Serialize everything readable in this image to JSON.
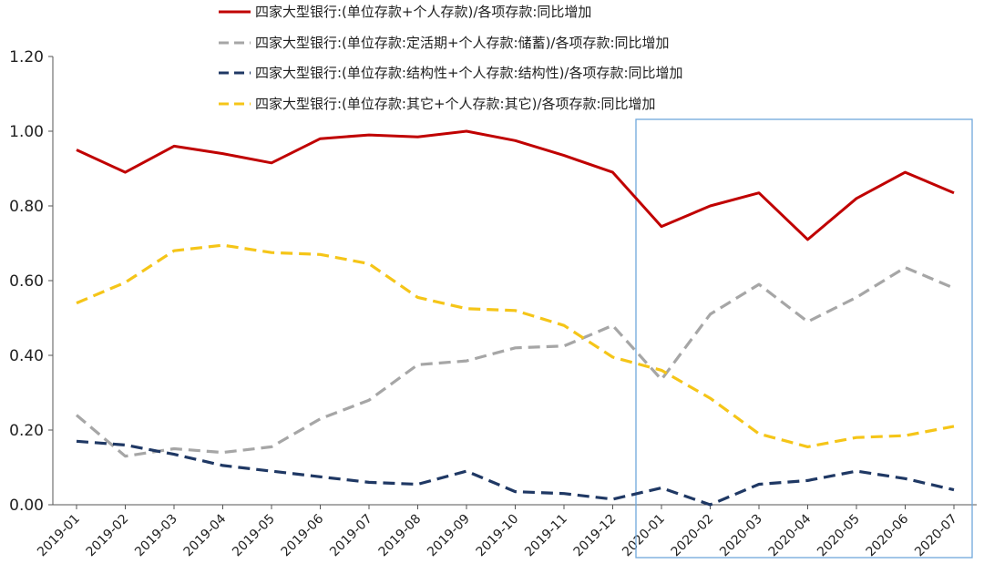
{
  "chart_data": {
    "type": "line",
    "x": [
      "2019-01",
      "2019-02",
      "2019-03",
      "2019-04",
      "2019-05",
      "2019-06",
      "2019-07",
      "2019-08",
      "2019-09",
      "2019-10",
      "2019-11",
      "2019-12",
      "2020-01",
      "2020-02",
      "2020-03",
      "2020-04",
      "2020-05",
      "2020-06",
      "2020-07"
    ],
    "ylim": [
      0,
      1.2
    ],
    "yticks": [
      "0.00",
      "0.20",
      "0.40",
      "0.60",
      "0.80",
      "1.00",
      "1.20"
    ],
    "grid": false,
    "legend_position": "top",
    "series": [
      {
        "name": "四家大型银行:(单位存款+个人存款)/各项存款:同比增加",
        "color": "#c00000",
        "style": "solid",
        "values": [
          0.95,
          0.89,
          0.96,
          0.94,
          0.915,
          0.98,
          0.99,
          0.985,
          1.0,
          0.975,
          0.935,
          0.89,
          0.745,
          0.8,
          0.835,
          0.71,
          0.82,
          0.89,
          0.835
        ]
      },
      {
        "name": "四家大型银行:(单位存款:定活期+个人存款:储蓄)/各项存款:同比增加",
        "color": "#a6a6a6",
        "style": "dashed",
        "values": [
          0.24,
          0.13,
          0.15,
          0.14,
          0.155,
          0.23,
          0.28,
          0.375,
          0.385,
          0.42,
          0.425,
          0.48,
          0.335,
          0.51,
          0.59,
          0.49,
          0.555,
          0.635,
          0.58
        ]
      },
      {
        "name": "四家大型银行:(单位存款:结构性+个人存款:结构性)/各项存款:同比增加",
        "color": "#1f3864",
        "style": "dashed",
        "values": [
          0.17,
          0.16,
          0.135,
          0.105,
          0.09,
          0.075,
          0.06,
          0.055,
          0.09,
          0.035,
          0.03,
          0.015,
          0.045,
          0.0,
          0.055,
          0.065,
          0.09,
          0.07,
          0.04
        ]
      },
      {
        "name": "四家大型银行:(单位存款:其它+个人存款:其它)/各项存款:同比增加",
        "color": "#f5c518",
        "style": "dashed",
        "values": [
          0.54,
          0.595,
          0.68,
          0.695,
          0.675,
          0.67,
          0.645,
          0.555,
          0.525,
          0.52,
          0.48,
          0.395,
          0.36,
          0.285,
          0.19,
          0.155,
          0.18,
          0.185,
          0.21
        ]
      }
    ],
    "highlight_range": [
      "2020-01",
      "2020-07"
    ],
    "highlight_color": "#6fa8dc"
  }
}
